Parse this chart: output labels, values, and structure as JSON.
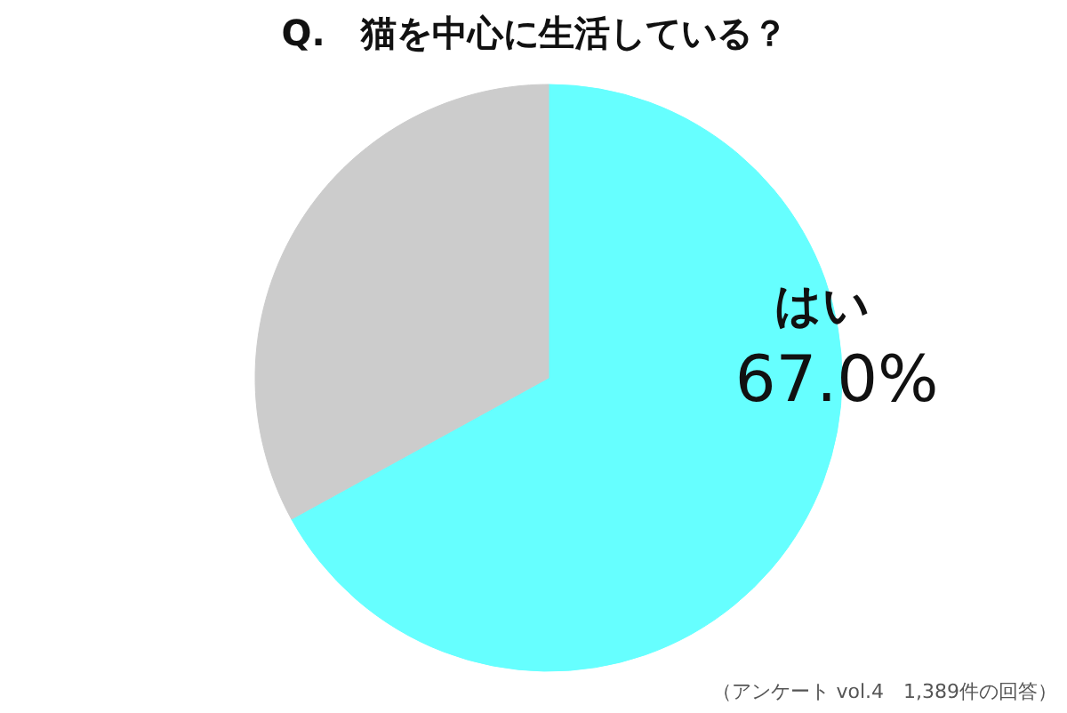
{
  "chart_data": {
    "type": "pie",
    "title": "Q.　猫を中心に生活している？",
    "categories": [
      "はい",
      null
    ],
    "values": [
      67.0,
      33.0
    ],
    "colors": [
      "#66ffff",
      "#cccccc"
    ],
    "value_labels": [
      "67.0%",
      null
    ],
    "annotations": [
      "（アンケート vol.4　1,389件の回答）"
    ]
  }
}
